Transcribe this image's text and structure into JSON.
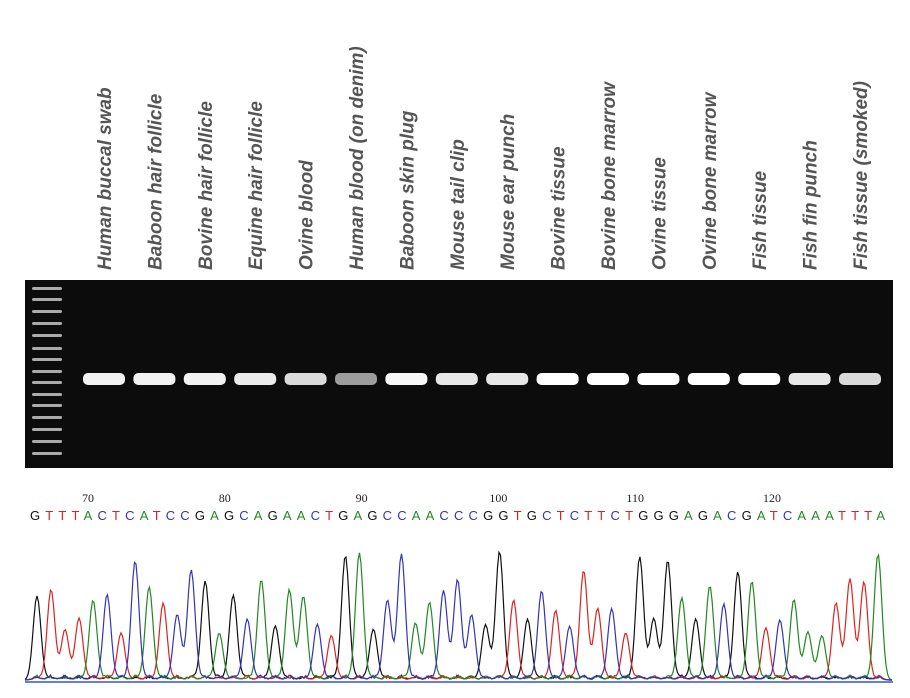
{
  "lanes": [
    "Human buccal swab",
    "Baboon hair follicle",
    "Bovine  hair follicle",
    "Equine hair follicle",
    "Ovine blood",
    "Human blood (on denim)",
    "Baboon skin plug",
    "Mouse tail clip",
    "Mouse ear punch",
    "Bovine tissue",
    "Bovine bone marrow",
    "Ovine tissue",
    "Ovine bone marrow",
    "Fish tissue",
    "Fish fin punch",
    "Fish tissue (smoked)"
  ],
  "chromatogram": {
    "positions": [
      70,
      80,
      90,
      100,
      110,
      120
    ],
    "sequence": "GTTTACTCATCCGAGCAGAACTGAGCCAACCCGGTGCTCTTCTGGGAGACGATCAAATTTA"
  }
}
